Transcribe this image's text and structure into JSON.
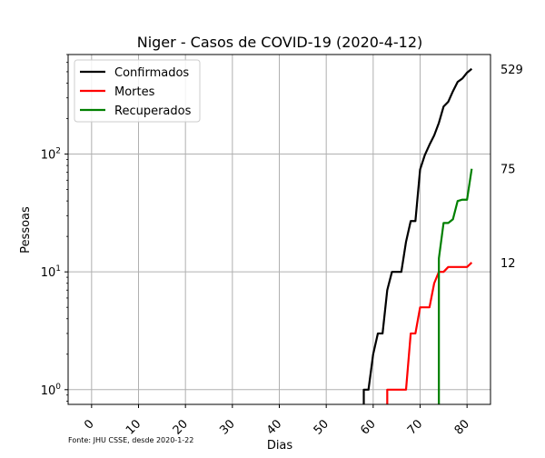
{
  "chart_data": {
    "type": "line",
    "title": "Niger - Casos de COVID-19 (2020-4-12)",
    "xlabel": "Dias",
    "ylabel": "Pessoas",
    "source_note": "Fonte: JHU CSSE, desde 2020-1-22",
    "xlim": [
      -5,
      85
    ],
    "ylim": [
      0.75,
      700
    ],
    "yscale": "log",
    "grid": true,
    "legend_position": "top-left",
    "x_ticks": [
      0,
      10,
      20,
      30,
      40,
      50,
      60,
      70,
      80
    ],
    "x_tick_labels": [
      "0",
      "10",
      "20",
      "30",
      "40",
      "50",
      "60",
      "70",
      "80"
    ],
    "y_ticks": [
      1,
      10,
      100
    ],
    "y_tick_labels": [
      {
        "base": "10",
        "exp": "0"
      },
      {
        "base": "10",
        "exp": "1"
      },
      {
        "base": "10",
        "exp": "2"
      }
    ],
    "series": [
      {
        "name": "Confirmados",
        "color": "#000000",
        "end_label": "529",
        "points": [
          [
            58,
            0.5
          ],
          [
            58,
            1
          ],
          [
            59,
            1
          ],
          [
            60,
            2
          ],
          [
            61,
            3
          ],
          [
            62,
            3
          ],
          [
            63,
            7
          ],
          [
            64,
            10
          ],
          [
            65,
            10
          ],
          [
            66,
            10
          ],
          [
            67,
            18
          ],
          [
            68,
            27
          ],
          [
            69,
            27
          ],
          [
            70,
            74
          ],
          [
            71,
            98
          ],
          [
            72,
            120
          ],
          [
            73,
            144
          ],
          [
            74,
            184
          ],
          [
            75,
            253
          ],
          [
            76,
            278
          ],
          [
            77,
            342
          ],
          [
            78,
            410
          ],
          [
            79,
            438
          ],
          [
            80,
            491
          ],
          [
            81,
            529
          ]
        ]
      },
      {
        "name": "Mortes",
        "color": "#ff0000",
        "end_label": "12",
        "points": [
          [
            63,
            0.5
          ],
          [
            63,
            1
          ],
          [
            64,
            1
          ],
          [
            65,
            1
          ],
          [
            66,
            1
          ],
          [
            67,
            1
          ],
          [
            68,
            3
          ],
          [
            69,
            3
          ],
          [
            70,
            5
          ],
          [
            71,
            5
          ],
          [
            72,
            5
          ],
          [
            73,
            8
          ],
          [
            74,
            10
          ],
          [
            75,
            10
          ],
          [
            76,
            11
          ],
          [
            77,
            11
          ],
          [
            78,
            11
          ],
          [
            79,
            11
          ],
          [
            80,
            11
          ],
          [
            81,
            12
          ]
        ]
      },
      {
        "name": "Recuperados",
        "color": "#008000",
        "end_label": "75",
        "points": [
          [
            74,
            0.5
          ],
          [
            74,
            13
          ],
          [
            75,
            26
          ],
          [
            76,
            26
          ],
          [
            77,
            28
          ],
          [
            78,
            40
          ],
          [
            79,
            41
          ],
          [
            80,
            41
          ],
          [
            81,
            75
          ]
        ]
      }
    ]
  }
}
